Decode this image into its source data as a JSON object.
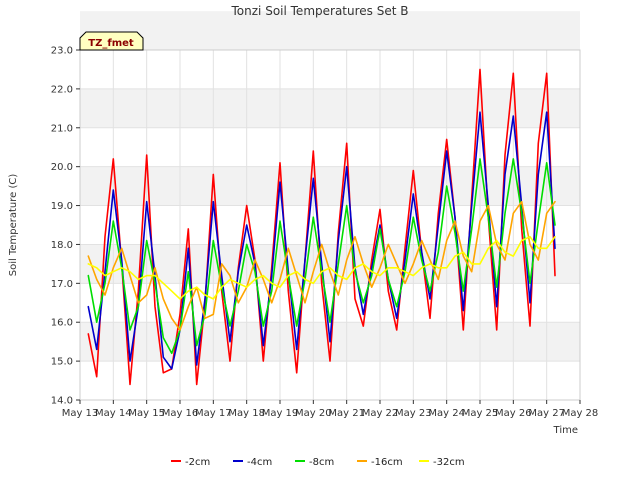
{
  "chart_data": {
    "type": "line",
    "title": "Tonzi Soil Temperatures Set B",
    "xlabel": "Time",
    "ylabel": "Soil Temperature (C)",
    "site_label": "TZ_fmet",
    "xlim": [
      13,
      28
    ],
    "ylim": [
      14.0,
      23.0
    ],
    "x_ticks": [
      {
        "value": 13,
        "label": "May 13"
      },
      {
        "value": 14,
        "label": "May 14"
      },
      {
        "value": 15,
        "label": "May 15"
      },
      {
        "value": 16,
        "label": "May 16"
      },
      {
        "value": 17,
        "label": "May 17"
      },
      {
        "value": 18,
        "label": "May 18"
      },
      {
        "value": 19,
        "label": "May 19"
      },
      {
        "value": 20,
        "label": "May 20"
      },
      {
        "value": 21,
        "label": "May 21"
      },
      {
        "value": 22,
        "label": "May 22"
      },
      {
        "value": 23,
        "label": "May 23"
      },
      {
        "value": 24,
        "label": "May 24"
      },
      {
        "value": 25,
        "label": "May 25"
      },
      {
        "value": 26,
        "label": "May 26"
      },
      {
        "value": 27,
        "label": "May 27"
      },
      {
        "value": 28,
        "label": "May 28"
      }
    ],
    "y_ticks": [
      {
        "value": 14.0,
        "label": "14.0"
      },
      {
        "value": 15.0,
        "label": "15.0"
      },
      {
        "value": 16.0,
        "label": "16.0"
      },
      {
        "value": 17.0,
        "label": "17.0"
      },
      {
        "value": 18.0,
        "label": "18.0"
      },
      {
        "value": 19.0,
        "label": "19.0"
      },
      {
        "value": 20.0,
        "label": "20.0"
      },
      {
        "value": 21.0,
        "label": "21.0"
      },
      {
        "value": 22.0,
        "label": "22.0"
      },
      {
        "value": 23.0,
        "label": "23.0"
      }
    ],
    "grid": true,
    "legend_position": "bottom-center",
    "series": [
      {
        "name": "-2cm",
        "color": "#ff0000",
        "x": [
          13.25,
          13.5,
          13.75,
          14.0,
          14.25,
          14.5,
          14.75,
          15.0,
          15.25,
          15.5,
          15.75,
          16.0,
          16.25,
          16.5,
          16.75,
          17.0,
          17.25,
          17.5,
          17.75,
          18.0,
          18.25,
          18.5,
          18.75,
          19.0,
          19.25,
          19.5,
          19.75,
          20.0,
          20.25,
          20.5,
          20.75,
          21.0,
          21.25,
          21.5,
          21.75,
          22.0,
          22.25,
          22.5,
          22.75,
          23.0,
          23.25,
          23.5,
          23.75,
          24.0,
          24.25,
          24.5,
          24.75,
          25.0,
          25.25,
          25.5,
          25.75,
          26.0,
          26.25,
          26.5,
          26.75,
          27.0,
          27.25
        ],
        "y": [
          15.7,
          14.6,
          18.2,
          20.2,
          17.5,
          14.4,
          16.8,
          20.3,
          16.4,
          14.7,
          14.8,
          16.2,
          18.4,
          14.4,
          16.5,
          19.8,
          16.8,
          15.0,
          17.4,
          19.0,
          17.6,
          15.0,
          17.4,
          20.1,
          16.8,
          14.7,
          17.6,
          20.4,
          17.0,
          15.0,
          18.3,
          20.6,
          16.6,
          15.9,
          17.6,
          18.9,
          16.8,
          15.8,
          17.9,
          19.9,
          17.8,
          16.1,
          18.8,
          20.7,
          18.7,
          15.8,
          19.2,
          22.5,
          18.7,
          15.8,
          20.3,
          22.4,
          18.4,
          15.9,
          20.6,
          22.4,
          17.2
        ]
      },
      {
        "name": "-4cm",
        "color": "#0000cc",
        "x": [
          13.25,
          13.5,
          13.75,
          14.0,
          14.25,
          14.5,
          14.75,
          15.0,
          15.25,
          15.5,
          15.75,
          16.0,
          16.25,
          16.5,
          16.75,
          17.0,
          17.25,
          17.5,
          17.75,
          18.0,
          18.25,
          18.5,
          18.75,
          19.0,
          19.25,
          19.5,
          19.75,
          20.0,
          20.25,
          20.5,
          20.75,
          21.0,
          21.25,
          21.5,
          21.75,
          22.0,
          22.25,
          22.5,
          22.75,
          23.0,
          23.25,
          23.5,
          23.75,
          24.0,
          24.25,
          24.5,
          24.75,
          25.0,
          25.25,
          25.5,
          25.75,
          26.0,
          26.25,
          26.5,
          26.75,
          27.0,
          27.25
        ],
        "y": [
          16.4,
          15.3,
          17.3,
          19.4,
          17.6,
          15.0,
          16.4,
          19.1,
          17.2,
          15.1,
          14.8,
          15.8,
          17.9,
          14.9,
          16.6,
          19.1,
          17.2,
          15.5,
          17.3,
          18.5,
          17.5,
          15.4,
          17.2,
          19.6,
          17.3,
          15.3,
          17.6,
          19.7,
          17.5,
          15.5,
          18.1,
          20.0,
          17.4,
          16.2,
          17.4,
          18.5,
          17.1,
          16.1,
          17.6,
          19.3,
          17.8,
          16.6,
          18.5,
          20.4,
          18.7,
          16.3,
          19.0,
          21.4,
          19.0,
          16.4,
          19.8,
          21.3,
          19.0,
          16.5,
          19.8,
          21.4,
          17.9
        ]
      },
      {
        "name": "-8cm",
        "color": "#00dd00",
        "x": [
          13.25,
          13.5,
          13.75,
          14.0,
          14.25,
          14.5,
          14.75,
          15.0,
          15.25,
          15.5,
          15.75,
          16.0,
          16.25,
          16.5,
          16.75,
          17.0,
          17.25,
          17.5,
          17.75,
          18.0,
          18.25,
          18.5,
          18.75,
          19.0,
          19.25,
          19.5,
          19.75,
          20.0,
          20.25,
          20.5,
          20.75,
          21.0,
          21.25,
          21.5,
          21.75,
          22.0,
          22.25,
          22.5,
          22.75,
          23.0,
          23.25,
          23.5,
          23.75,
          24.0,
          24.25,
          24.5,
          24.75,
          25.0,
          25.25,
          25.5,
          25.75,
          26.0,
          26.25,
          26.5,
          26.75,
          27.0,
          27.25
        ],
        "y": [
          17.2,
          16.0,
          17.0,
          18.6,
          17.4,
          15.8,
          16.4,
          18.1,
          17.0,
          15.6,
          15.2,
          15.8,
          17.3,
          15.4,
          16.2,
          18.1,
          16.9,
          15.9,
          16.8,
          18.0,
          17.3,
          15.9,
          16.8,
          18.6,
          17.2,
          15.9,
          17.1,
          18.7,
          17.3,
          16.0,
          17.5,
          19.0,
          17.3,
          16.5,
          17.2,
          18.4,
          17.1,
          16.4,
          17.3,
          18.7,
          17.6,
          16.8,
          17.8,
          19.5,
          18.3,
          16.8,
          18.4,
          20.2,
          18.7,
          16.9,
          18.8,
          20.2,
          18.8,
          17.0,
          18.6,
          20.1,
          18.5
        ]
      },
      {
        "name": "-16cm",
        "color": "#ffa500",
        "x": [
          13.25,
          13.5,
          13.75,
          14.0,
          14.25,
          14.5,
          14.75,
          15.0,
          15.25,
          15.5,
          15.75,
          16.0,
          16.25,
          16.5,
          16.75,
          17.0,
          17.25,
          17.5,
          17.75,
          18.0,
          18.25,
          18.5,
          18.75,
          19.0,
          19.25,
          19.5,
          19.75,
          20.0,
          20.25,
          20.5,
          20.75,
          21.0,
          21.25,
          21.5,
          21.75,
          22.0,
          22.25,
          22.5,
          22.75,
          23.0,
          23.25,
          23.5,
          23.75,
          24.0,
          24.25,
          24.5,
          24.75,
          25.0,
          25.25,
          25.5,
          25.75,
          26.0,
          26.25,
          26.5,
          26.75,
          27.0,
          27.25
        ],
        "y": [
          17.7,
          17.1,
          16.7,
          17.4,
          17.9,
          17.2,
          16.5,
          16.7,
          17.4,
          16.6,
          16.1,
          15.8,
          16.4,
          16.9,
          16.1,
          16.2,
          17.5,
          17.2,
          16.5,
          16.9,
          17.6,
          17.1,
          16.5,
          17.1,
          17.9,
          17.2,
          16.5,
          17.3,
          18.0,
          17.3,
          16.7,
          17.6,
          18.2,
          17.5,
          16.9,
          17.4,
          18.0,
          17.5,
          17.0,
          17.5,
          18.1,
          17.6,
          17.1,
          18.1,
          18.6,
          17.7,
          17.3,
          18.6,
          19.0,
          18.0,
          17.6,
          18.8,
          19.1,
          18.0,
          17.6,
          18.8,
          19.1
        ]
      },
      {
        "name": "-32cm",
        "color": "#ffff00",
        "x": [
          13.25,
          13.5,
          13.75,
          14.0,
          14.25,
          14.5,
          14.75,
          15.0,
          15.25,
          15.5,
          15.75,
          16.0,
          16.25,
          16.5,
          16.75,
          17.0,
          17.25,
          17.5,
          17.75,
          18.0,
          18.25,
          18.5,
          18.75,
          19.0,
          19.25,
          19.5,
          19.75,
          20.0,
          20.25,
          20.5,
          20.75,
          21.0,
          21.25,
          21.5,
          21.75,
          22.0,
          22.25,
          22.5,
          22.75,
          23.0,
          23.25,
          23.5,
          23.75,
          24.0,
          24.25,
          24.5,
          24.75,
          25.0,
          25.25,
          25.5,
          25.75,
          26.0,
          26.25,
          26.5,
          26.75,
          27.0,
          27.25
        ],
        "y": [
          17.5,
          17.4,
          17.2,
          17.3,
          17.4,
          17.3,
          17.1,
          17.2,
          17.2,
          17.0,
          16.8,
          16.6,
          16.8,
          16.9,
          16.7,
          16.6,
          16.9,
          17.1,
          17.0,
          16.9,
          17.1,
          17.2,
          17.0,
          16.9,
          17.2,
          17.3,
          17.1,
          17.0,
          17.3,
          17.4,
          17.2,
          17.1,
          17.4,
          17.5,
          17.3,
          17.2,
          17.4,
          17.4,
          17.3,
          17.2,
          17.4,
          17.5,
          17.4,
          17.4,
          17.7,
          17.8,
          17.5,
          17.5,
          17.9,
          18.1,
          17.8,
          17.7,
          18.1,
          18.2,
          17.9,
          17.9,
          18.2
        ]
      }
    ]
  }
}
